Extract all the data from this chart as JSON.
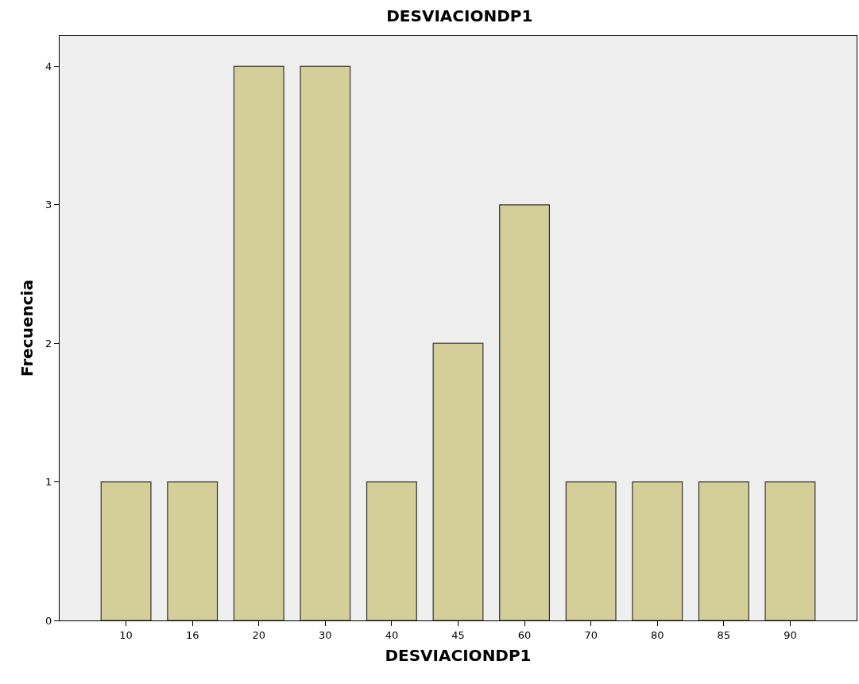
{
  "chart_data": {
    "type": "bar",
    "title": "DESVIACIONDP1",
    "xlabel": "DESVIACIONDP1",
    "ylabel": "Frecuencia",
    "categories": [
      "10",
      "16",
      "20",
      "30",
      "40",
      "45",
      "60",
      "70",
      "80",
      "85",
      "90"
    ],
    "values": [
      1,
      1,
      4,
      4,
      1,
      2,
      3,
      1,
      1,
      1,
      1
    ],
    "color": "#d4cf98",
    "ylim": [
      0,
      4.22
    ],
    "yticks": [
      0,
      1,
      2,
      3,
      4
    ],
    "grid": false,
    "legend": false
  }
}
